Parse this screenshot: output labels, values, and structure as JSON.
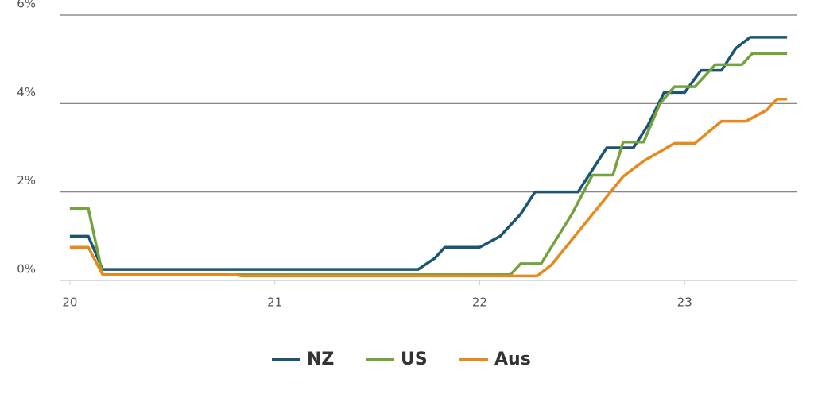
{
  "chart_data": {
    "type": "line",
    "xlim": [
      19.95,
      23.55
    ],
    "xticks": [
      20,
      21,
      22,
      23
    ],
    "ylim": [
      0,
      6
    ],
    "yticks": [
      {
        "value": 0,
        "label": "0%"
      },
      {
        "value": 2,
        "label": "2%"
      },
      {
        "value": 4,
        "label": "4%"
      },
      {
        "value": 6,
        "label": "6%"
      }
    ],
    "grid": true,
    "legend": "bottom",
    "series": [
      {
        "name": "NZ",
        "color": "#1c5473",
        "x": [
          20.0,
          20.09,
          20.16,
          21.7,
          21.78,
          21.83,
          22.0,
          22.1,
          22.2,
          22.27,
          22.48,
          22.55,
          22.62,
          22.75,
          22.82,
          22.9,
          23.0,
          23.08,
          23.18,
          23.25,
          23.32,
          23.5
        ],
        "values": [
          1.0,
          1.0,
          0.25,
          0.25,
          0.5,
          0.75,
          0.75,
          1.0,
          1.5,
          2.0,
          2.0,
          2.5,
          3.0,
          3.0,
          3.5,
          4.25,
          4.25,
          4.75,
          4.75,
          5.25,
          5.5,
          5.5
        ]
      },
      {
        "name": "US",
        "color": "#72a33c",
        "x": [
          20.0,
          20.09,
          20.16,
          22.15,
          22.2,
          22.3,
          22.45,
          22.55,
          22.65,
          22.7,
          22.8,
          22.88,
          22.95,
          23.05,
          23.15,
          23.28,
          23.33,
          23.5
        ],
        "values": [
          1.63,
          1.63,
          0.13,
          0.13,
          0.38,
          0.38,
          1.5,
          2.38,
          2.38,
          3.13,
          3.13,
          4.0,
          4.38,
          4.38,
          4.88,
          4.88,
          5.13,
          5.13
        ]
      },
      {
        "name": "Aus",
        "color": "#e8891e",
        "x": [
          20.0,
          20.09,
          20.16,
          20.8,
          20.84,
          22.28,
          22.35,
          22.7,
          22.8,
          22.95,
          23.05,
          23.18,
          23.3,
          23.4,
          23.45,
          23.5
        ],
        "values": [
          0.75,
          0.75,
          0.13,
          0.13,
          0.1,
          0.1,
          0.35,
          2.35,
          2.7,
          3.1,
          3.1,
          3.6,
          3.6,
          3.85,
          4.1,
          4.1
        ]
      }
    ]
  }
}
